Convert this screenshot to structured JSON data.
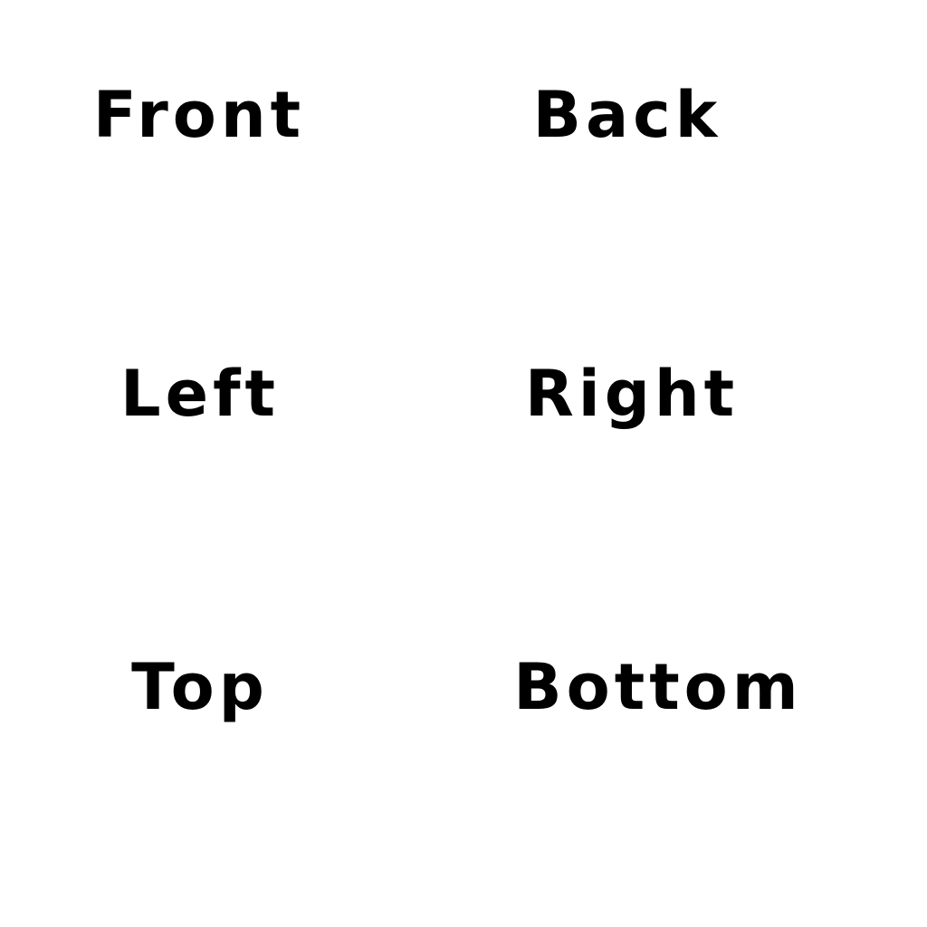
{
  "labels": {
    "front": "Front",
    "back": "Back",
    "left": "Left",
    "right": "Right",
    "top": "Top",
    "bottom": "Bottom"
  },
  "colors": {
    "text": "#000000",
    "background": "#ffffff"
  }
}
